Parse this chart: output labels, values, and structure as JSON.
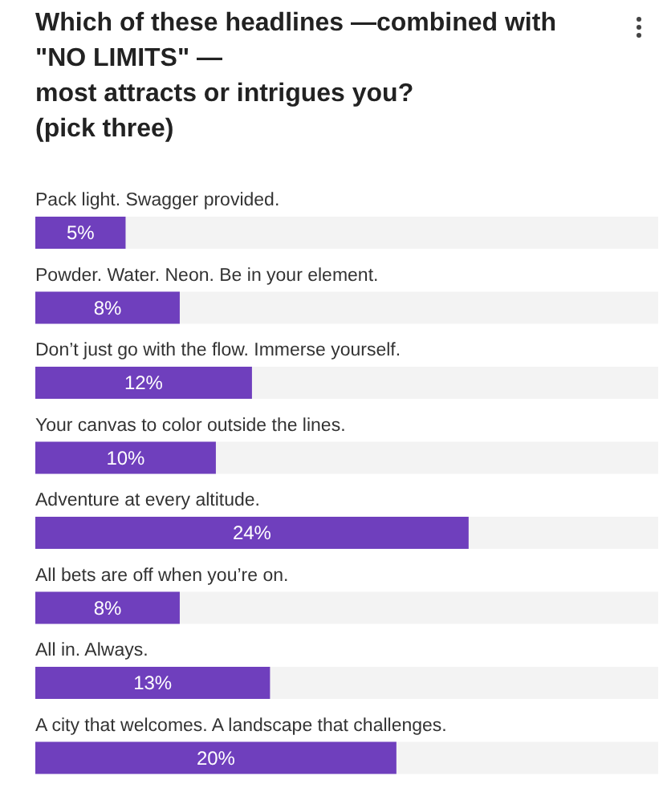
{
  "chart_data": {
    "type": "bar",
    "orientation": "horizontal",
    "title": "Which of these headlines —combined with\n\"NO LIMITS\" —\nmost attracts or intrigues you?\n(pick three)",
    "categories": [
      "Pack light. Swagger provided.",
      "Powder. Water. Neon. Be in your element.",
      "Don’t just go with the flow. Immerse yourself.",
      "Your canvas to color outside the lines.",
      "Adventure at every altitude.",
      "All bets are off when you’re on.",
      "All in. Always.",
      "A city that welcomes. A landscape that challenges."
    ],
    "values": [
      5,
      8,
      12,
      10,
      24,
      8,
      13,
      20
    ],
    "value_labels": [
      "5%",
      "8%",
      "12%",
      "10%",
      "24%",
      "8%",
      "13%",
      "20%"
    ],
    "color": "#6f3fbd",
    "xlim": [
      0,
      34.5
    ]
  }
}
